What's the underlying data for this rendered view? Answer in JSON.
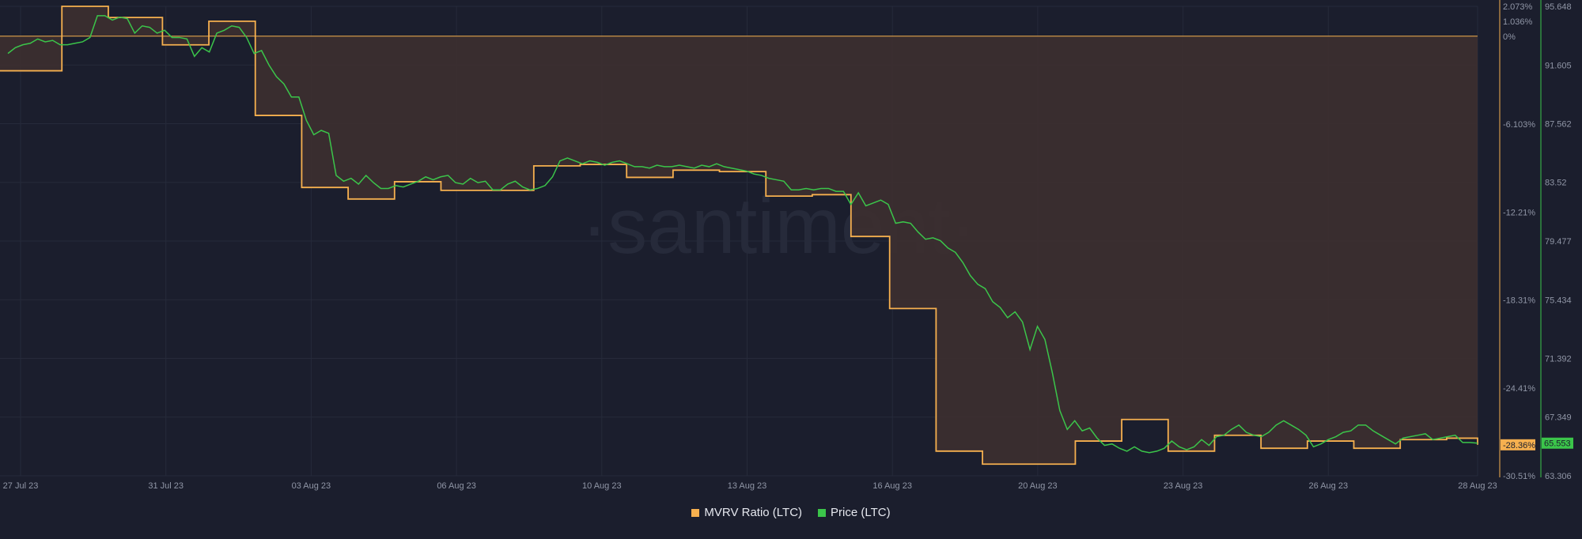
{
  "watermark": "·santiment·",
  "colors": {
    "background": "#1b1e2d",
    "mvrv": "#f6b04f",
    "mvrv_fill": "#3d2f30",
    "price": "#3bc54a",
    "grid": "#262a3a",
    "axis_text": "#9096a6"
  },
  "legend": {
    "mvrv_label": "MVRV Ratio (LTC)",
    "price_label": "Price (LTC)"
  },
  "chart_data": {
    "type": "line",
    "x_ticks": [
      "27 Jul 23",
      "31 Jul 23",
      "03 Aug 23",
      "06 Aug 23",
      "10 Aug 23",
      "13 Aug 23",
      "16 Aug 23",
      "20 Aug 23",
      "23 Aug 23",
      "26 Aug 23",
      "28 Aug 23"
    ],
    "mvrv_axis": {
      "ticks": [
        "2.073%",
        "1.036%",
        "0%",
        "-6.103%",
        "-12.21%",
        "-18.31%",
        "-24.41%",
        "-30.51%"
      ],
      "current_label": "-28.36%",
      "range": [
        -30.51,
        2.073
      ]
    },
    "price_axis": {
      "ticks": [
        "95.648",
        "91.605",
        "87.562",
        "83.52",
        "79.477",
        "75.434",
        "71.392",
        "67.349",
        "63.306"
      ],
      "current_label": "65.553",
      "range": [
        63.306,
        95.648
      ]
    },
    "series": [
      {
        "name": "MVRV Ratio (LTC)",
        "axis": "left-percent",
        "values": [
          -2.4,
          -2.4,
          -2.4,
          -2.4,
          -2.4,
          -2.4,
          -2.4,
          -2.4,
          2.073,
          2.073,
          2.073,
          2.073,
          2.073,
          2.073,
          1.3,
          1.3,
          1.3,
          1.3,
          1.3,
          1.3,
          1.3,
          -0.6,
          -0.6,
          -0.6,
          -0.6,
          -0.6,
          -0.6,
          1.036,
          1.036,
          1.036,
          1.036,
          1.036,
          1.036,
          -5.5,
          -5.5,
          -5.5,
          -5.5,
          -5.5,
          -5.5,
          -10.5,
          -10.5,
          -10.5,
          -10.5,
          -10.5,
          -10.5,
          -11.3,
          -11.3,
          -11.3,
          -11.3,
          -11.3,
          -11.3,
          -10.1,
          -10.1,
          -10.1,
          -10.1,
          -10.1,
          -10.1,
          -10.7,
          -10.7,
          -10.7,
          -10.7,
          -10.7,
          -10.7,
          -10.7,
          -10.7,
          -10.7,
          -10.7,
          -10.7,
          -10.7,
          -9.0,
          -9.0,
          -9.0,
          -9.0,
          -9.0,
          -9.0,
          -8.9,
          -8.9,
          -8.9,
          -8.9,
          -8.9,
          -8.9,
          -9.8,
          -9.8,
          -9.8,
          -9.8,
          -9.8,
          -9.8,
          -9.3,
          -9.3,
          -9.3,
          -9.3,
          -9.3,
          -9.3,
          -9.4,
          -9.4,
          -9.4,
          -9.4,
          -9.4,
          -9.4,
          -11.1,
          -11.1,
          -11.1,
          -11.1,
          -11.1,
          -11.1,
          -11.0,
          -11.0,
          -11.0,
          -11.0,
          -11.0,
          -13.9,
          -13.9,
          -13.9,
          -13.9,
          -13.9,
          -18.9,
          -18.9,
          -18.9,
          -18.9,
          -18.9,
          -18.9,
          -28.8,
          -28.8,
          -28.8,
          -28.8,
          -28.8,
          -28.8,
          -29.7,
          -29.7,
          -29.7,
          -29.7,
          -29.7,
          -29.7,
          -29.7,
          -29.7,
          -29.7,
          -29.7,
          -29.7,
          -29.7,
          -28.1,
          -28.1,
          -28.1,
          -28.1,
          -28.1,
          -28.1,
          -26.6,
          -26.6,
          -26.6,
          -26.6,
          -26.6,
          -26.6,
          -28.8,
          -28.8,
          -28.8,
          -28.8,
          -28.8,
          -28.8,
          -27.7,
          -27.7,
          -27.7,
          -27.7,
          -27.7,
          -27.7,
          -28.6,
          -28.6,
          -28.6,
          -28.6,
          -28.6,
          -28.6,
          -28.1,
          -28.1,
          -28.1,
          -28.1,
          -28.1,
          -28.1,
          -28.6,
          -28.6,
          -28.6,
          -28.6,
          -28.6,
          -28.6,
          -28.0,
          -28.0,
          -28.0,
          -28.0,
          -28.0,
          -28.0,
          -27.9,
          -27.9,
          -27.9,
          -27.9,
          -28.36
        ]
      },
      {
        "name": "Price (LTC)",
        "axis": "right-price",
        "values": [
          92.4,
          92.8,
          93.0,
          93.1,
          93.4,
          93.2,
          93.3,
          93.0,
          93.0,
          93.1,
          93.2,
          93.5,
          95.0,
          95.0,
          94.7,
          94.9,
          94.8,
          93.8,
          94.3,
          94.2,
          93.8,
          94.0,
          93.5,
          93.5,
          93.4,
          92.2,
          92.8,
          92.5,
          93.8,
          94.0,
          94.3,
          94.2,
          93.5,
          92.4,
          92.6,
          91.6,
          90.8,
          90.3,
          89.4,
          89.4,
          87.8,
          86.8,
          87.1,
          86.9,
          84.0,
          83.6,
          83.8,
          83.4,
          84.0,
          83.5,
          83.1,
          83.1,
          83.3,
          83.2,
          83.4,
          83.6,
          83.9,
          83.7,
          83.9,
          84.0,
          83.5,
          83.4,
          83.8,
          83.5,
          83.6,
          83.0,
          83.0,
          83.4,
          83.6,
          83.2,
          83.0,
          83.1,
          83.3,
          83.9,
          85.0,
          85.2,
          85.0,
          84.8,
          85.0,
          84.9,
          84.7,
          84.9,
          85.0,
          84.8,
          84.6,
          84.6,
          84.5,
          84.7,
          84.6,
          84.6,
          84.7,
          84.6,
          84.5,
          84.7,
          84.6,
          84.8,
          84.6,
          84.5,
          84.4,
          84.3,
          84.1,
          84.0,
          83.8,
          83.7,
          83.6,
          83.0,
          83.0,
          83.1,
          83.0,
          83.1,
          83.1,
          82.9,
          82.9,
          82.0,
          82.8,
          81.9,
          82.1,
          82.3,
          82.0,
          80.7,
          80.8,
          80.7,
          80.1,
          79.6,
          79.7,
          79.5,
          79.0,
          78.7,
          78.0,
          77.1,
          76.5,
          76.2,
          75.3,
          74.9,
          74.2,
          74.6,
          73.9,
          72.0,
          73.6,
          72.7,
          70.4,
          67.8,
          66.5,
          67.1,
          66.4,
          66.6,
          65.9,
          65.4,
          65.5,
          65.2,
          65.0,
          65.3,
          65.0,
          64.9,
          65.0,
          65.2,
          65.7,
          65.3,
          65.1,
          65.3,
          65.8,
          65.4,
          66.0,
          66.1,
          66.5,
          66.8,
          66.3,
          66.1,
          66.0,
          66.3,
          66.8,
          67.1,
          66.8,
          66.5,
          66.1,
          65.3,
          65.5,
          65.8,
          66.0,
          66.3,
          66.4,
          66.8,
          66.8,
          66.4,
          66.1,
          65.8,
          65.5,
          65.9,
          66.0,
          66.1,
          66.2,
          65.8,
          65.9,
          66.0,
          66.1,
          65.6,
          65.6,
          65.553
        ]
      }
    ]
  }
}
